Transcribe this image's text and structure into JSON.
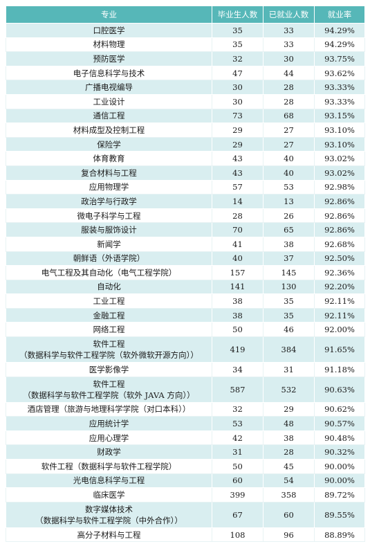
{
  "table": {
    "headers": [
      "专业",
      "毕业生人数",
      "已就业人数",
      "就业率"
    ],
    "rows": [
      {
        "major": "口腔医学",
        "graduates": "35",
        "employed": "33",
        "rate": "94.29%"
      },
      {
        "major": "材料物理",
        "graduates": "35",
        "employed": "33",
        "rate": "94.29%"
      },
      {
        "major": "预防医学",
        "graduates": "32",
        "employed": "30",
        "rate": "93.75%"
      },
      {
        "major": "电子信息科学与技术",
        "graduates": "47",
        "employed": "44",
        "rate": "93.62%"
      },
      {
        "major": "广播电视编导",
        "graduates": "30",
        "employed": "28",
        "rate": "93.33%"
      },
      {
        "major": "工业设计",
        "graduates": "30",
        "employed": "28",
        "rate": "93.33%"
      },
      {
        "major": "通信工程",
        "graduates": "73",
        "employed": "68",
        "rate": "93.15%"
      },
      {
        "major": "材料成型及控制工程",
        "graduates": "29",
        "employed": "27",
        "rate": "93.10%"
      },
      {
        "major": "保险学",
        "graduates": "29",
        "employed": "27",
        "rate": "93.10%"
      },
      {
        "major": "体育教育",
        "graduates": "43",
        "employed": "40",
        "rate": "93.02%"
      },
      {
        "major": "复合材料与工程",
        "graduates": "43",
        "employed": "40",
        "rate": "93.02%"
      },
      {
        "major": "应用物理学",
        "graduates": "57",
        "employed": "53",
        "rate": "92.98%"
      },
      {
        "major": "政治学与行政学",
        "graduates": "14",
        "employed": "13",
        "rate": "92.86%"
      },
      {
        "major": "微电子科学与工程",
        "graduates": "28",
        "employed": "26",
        "rate": "92.86%"
      },
      {
        "major": "服装与服饰设计",
        "graduates": "70",
        "employed": "65",
        "rate": "92.86%"
      },
      {
        "major": "新闻学",
        "graduates": "41",
        "employed": "38",
        "rate": "92.68%"
      },
      {
        "major": "朝鲜语（外语学院）",
        "graduates": "40",
        "employed": "37",
        "rate": "92.50%"
      },
      {
        "major": "电气工程及其自动化（电气工程学院）",
        "graduates": "157",
        "employed": "145",
        "rate": "92.36%"
      },
      {
        "major": "自动化",
        "graduates": "141",
        "employed": "130",
        "rate": "92.20%"
      },
      {
        "major": "工业工程",
        "graduates": "38",
        "employed": "35",
        "rate": "92.11%"
      },
      {
        "major": "金融工程",
        "graduates": "38",
        "employed": "35",
        "rate": "92.11%"
      },
      {
        "major": "网络工程",
        "graduates": "50",
        "employed": "46",
        "rate": "92.00%"
      },
      {
        "major": "软件工程\n（数据科学与软件工程学院（软外微软开源方向））",
        "graduates": "419",
        "employed": "384",
        "rate": "91.65%",
        "tall": true
      },
      {
        "major": "医学影像学",
        "graduates": "34",
        "employed": "31",
        "rate": "91.18%"
      },
      {
        "major": "软件工程\n（数据科学与软件工程学院（软外 JAVA 方向））",
        "graduates": "587",
        "employed": "532",
        "rate": "90.63%",
        "tall": true
      },
      {
        "major": "酒店管理（旅游与地理科学学院（对口本科））",
        "graduates": "32",
        "employed": "29",
        "rate": "90.62%"
      },
      {
        "major": "应用统计学",
        "graduates": "53",
        "employed": "48",
        "rate": "90.57%"
      },
      {
        "major": "应用心理学",
        "graduates": "42",
        "employed": "38",
        "rate": "90.48%"
      },
      {
        "major": "财政学",
        "graduates": "31",
        "employed": "28",
        "rate": "90.32%"
      },
      {
        "major": "软件工程（数据科学与软件工程学院）",
        "graduates": "50",
        "employed": "45",
        "rate": "90.00%"
      },
      {
        "major": "光电信息科学与工程",
        "graduates": "60",
        "employed": "54",
        "rate": "90.00%"
      },
      {
        "major": "临床医学",
        "graduates": "399",
        "employed": "358",
        "rate": "89.72%"
      },
      {
        "major": "数字媒体技术\n（数据科学与软件工程学院（中外合作））",
        "graduates": "67",
        "employed": "60",
        "rate": "89.55%",
        "tall": true
      },
      {
        "major": "高分子材料与工程",
        "graduates": "108",
        "employed": "96",
        "rate": "88.89%"
      }
    ]
  },
  "colors": {
    "header": "#56b7b8",
    "stripe": "#d9eef0"
  }
}
